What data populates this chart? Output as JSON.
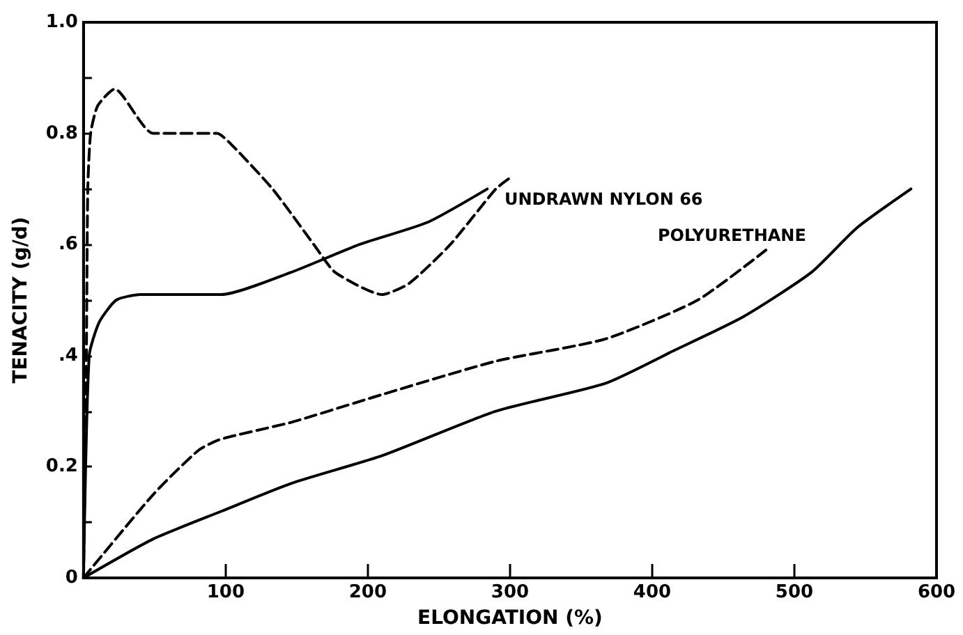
{
  "chart_data": {
    "type": "line",
    "xlabel": "ELONGATION (%)",
    "ylabel": "TENACITY (g/d)",
    "xlim": [
      0,
      600
    ],
    "xticks": [
      100,
      200,
      300,
      400,
      500,
      600
    ],
    "ylim": [
      0,
      1.0
    ],
    "yticks": [
      0,
      {
        "value": 0.1,
        "label": null
      },
      {
        "value": 0.2,
        "label": "0.2"
      },
      {
        "value": 0.3,
        "label": null
      },
      {
        "value": 0.4,
        "label": ".4"
      },
      {
        "value": 0.5,
        "label": null
      },
      {
        "value": 0.6,
        "label": ".6"
      },
      {
        "value": 0.7,
        "label": null
      },
      {
        "value": 0.8,
        "label": "0.8"
      },
      {
        "value": 0.9,
        "label": null
      },
      {
        "value": 1.0,
        "label": "1.0"
      }
    ],
    "grid": false,
    "marker": "none",
    "series": [
      {
        "color": "#000000",
        "line_style": "dashed",
        "x": [
          0,
          2,
          3,
          5,
          10,
          22,
          49,
          94,
          104,
          133,
          162,
          177,
          210,
          229,
          258,
          290,
          300
        ],
        "values": [
          0,
          0.4,
          0.7,
          0.8,
          0.85,
          0.88,
          0.8,
          0.8,
          0.78,
          0.7,
          0.6,
          0.55,
          0.51,
          0.53,
          0.6,
          0.7,
          0.72
        ]
      },
      {
        "color": "#000000",
        "line_style": "solid",
        "x": [
          0,
          4,
          11,
          23,
          40,
          62,
          97,
          146,
          194,
          242,
          284
        ],
        "values": [
          0,
          0.4,
          0.46,
          0.5,
          0.51,
          0.51,
          0.51,
          0.55,
          0.6,
          0.64,
          0.7
        ]
      },
      {
        "color": "#000000",
        "line_style": "dashed",
        "x": [
          0,
          49,
          81,
          97,
          146,
          210,
          290,
          367,
          432,
          480
        ],
        "values": [
          0,
          0.15,
          0.23,
          0.25,
          0.28,
          0.33,
          0.39,
          0.43,
          0.5,
          0.59
        ]
      },
      {
        "color": "#000000",
        "line_style": "solid",
        "x": [
          0,
          49,
          97,
          146,
          210,
          290,
          367,
          416,
          464,
          512,
          544,
          582
        ],
        "values": [
          0,
          0.07,
          0.12,
          0.17,
          0.22,
          0.3,
          0.35,
          0.41,
          0.47,
          0.55,
          0.63,
          0.7
        ]
      }
    ],
    "annotations": [
      "UNDRAWN NYLON 66",
      "POLYURETHANE"
    ]
  }
}
